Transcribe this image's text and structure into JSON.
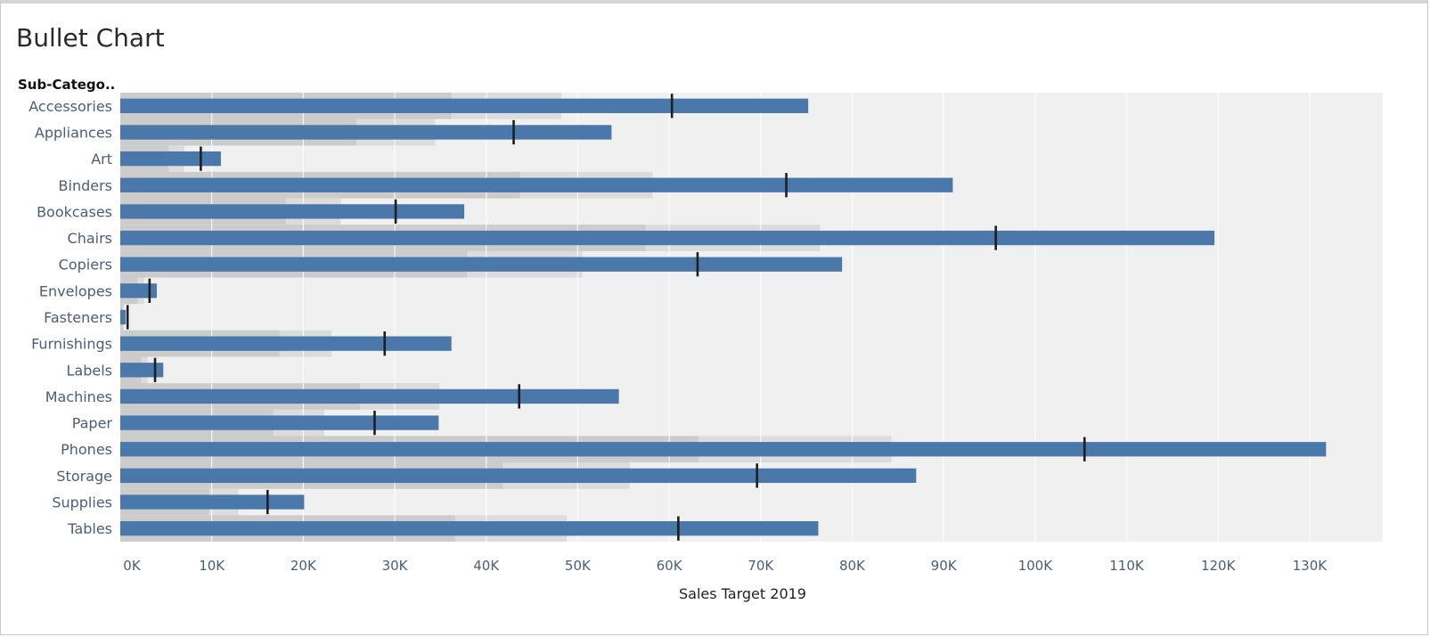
{
  "title": "Bullet Chart",
  "row_header": "Sub-Catego..",
  "chart_data": {
    "type": "bar",
    "subtype": "bullet",
    "title": "Bullet Chart",
    "xlabel": "Sales Target 2019",
    "ylabel": "Sub-Catego..",
    "xlim": [
      0,
      138000
    ],
    "xticks": [
      "0K",
      "10K",
      "20K",
      "30K",
      "40K",
      "50K",
      "60K",
      "70K",
      "80K",
      "90K",
      "100K",
      "110K",
      "120K",
      "130K"
    ],
    "grid": true,
    "colors": {
      "bar": "#4a78ab",
      "target": "#1f1f1f",
      "band_dark": "#cccccc",
      "band_light": "#dcdcdc",
      "background": "#f0f0f0"
    },
    "categories": [
      "Accessories",
      "Appliances",
      "Art",
      "Binders",
      "Bookcases",
      "Chairs",
      "Copiers",
      "Envelopes",
      "Fasteners",
      "Furnishings",
      "Labels",
      "Machines",
      "Paper",
      "Phones",
      "Storage",
      "Supplies",
      "Tables"
    ],
    "series": [
      {
        "values": [
          75200,
          53700,
          11000,
          91000,
          37600,
          119600,
          78900,
          4000,
          600,
          36200,
          4700,
          54500,
          34800,
          131800,
          87000,
          20100,
          76300
        ]
      },
      {
        "values": [
          60300,
          43000,
          8800,
          72800,
          30100,
          95700,
          63100,
          3200,
          800,
          28900,
          3800,
          43600,
          27800,
          105400,
          69600,
          16100,
          61000
        ]
      },
      {
        "values": [
          36200,
          25800,
          5300,
          43700,
          18100,
          57400,
          37900,
          1900,
          300,
          17400,
          2300,
          26200,
          16700,
          63200,
          41800,
          9700,
          36600
        ]
      },
      {
        "values": [
          48200,
          34400,
          7000,
          58200,
          24100,
          76500,
          50500,
          2600,
          400,
          23100,
          3000,
          34900,
          22300,
          84300,
          55700,
          12900,
          48800
        ]
      }
    ]
  }
}
